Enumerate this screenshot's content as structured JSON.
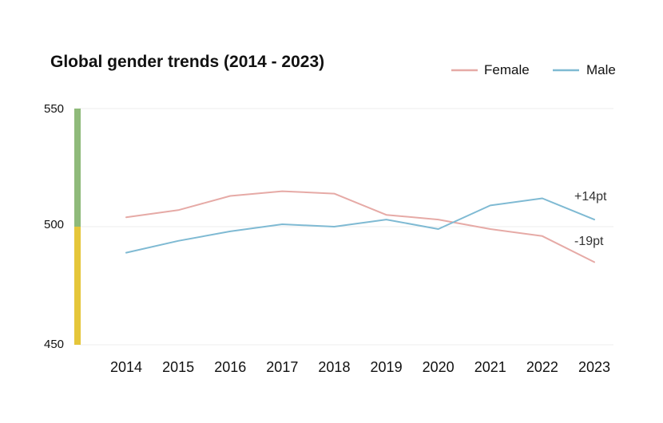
{
  "chart_data": {
    "type": "line",
    "title": "Global gender trends (2014 - 2023)",
    "xlabel": "",
    "ylabel": "",
    "categories": [
      "2014",
      "2015",
      "2016",
      "2017",
      "2018",
      "2019",
      "2020",
      "2021",
      "2022",
      "2023"
    ],
    "y_ticks": [
      "550",
      "500",
      "450"
    ],
    "ylim": [
      450,
      550
    ],
    "grid": "horizontal",
    "legend_position": "top-right",
    "series": [
      {
        "name": "Female",
        "color": "#e6aaa6",
        "values": [
          504,
          507,
          513,
          515,
          514,
          505,
          503,
          499,
          496,
          485
        ]
      },
      {
        "name": "Male",
        "color": "#7fbad3",
        "values": [
          489,
          494,
          498,
          501,
          500,
          503,
          499,
          509,
          512,
          503
        ]
      }
    ],
    "annotations": [
      {
        "text": "+14pt",
        "series": "Male"
      },
      {
        "text": "-19pt",
        "series": "Female"
      }
    ],
    "y_band_colors": {
      "upper": "#8fba7a",
      "lower": "#e5c63a"
    }
  }
}
